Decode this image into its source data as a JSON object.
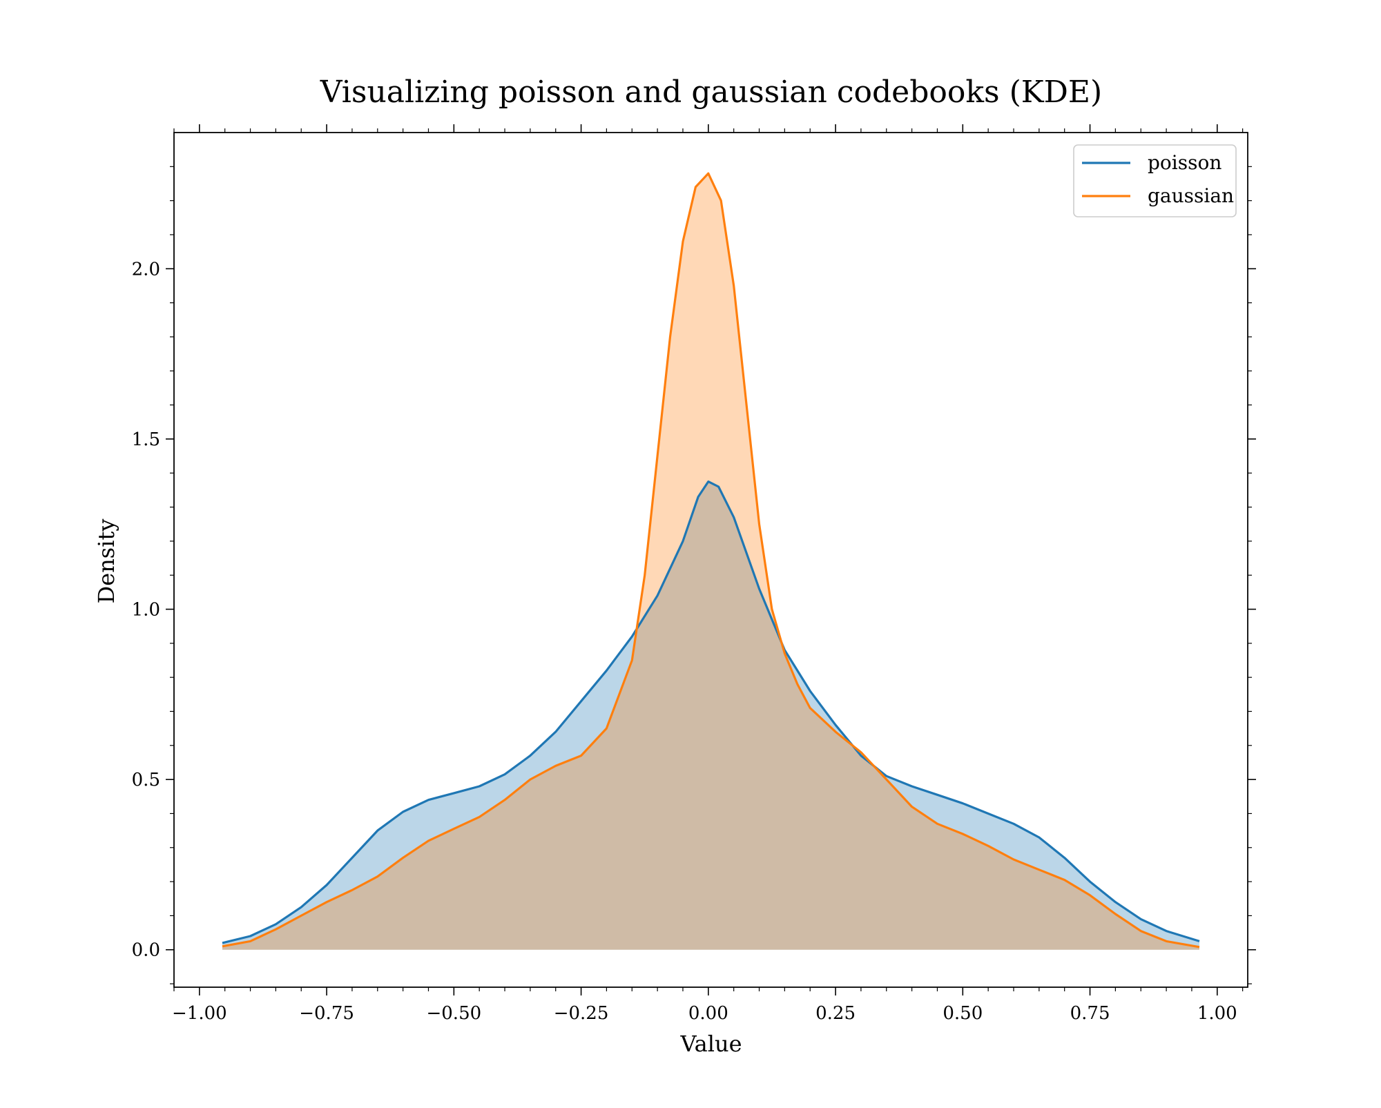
{
  "chart_data": {
    "type": "area",
    "title": "Visualizing poisson and gaussian codebooks (KDE)",
    "xlabel": "Value",
    "ylabel": "Density",
    "xlim": [
      -1.05,
      1.06
    ],
    "ylim": [
      -0.11,
      2.4
    ],
    "x_ticks": [
      -1.0,
      -0.75,
      -0.5,
      -0.25,
      0.0,
      0.25,
      0.5,
      0.75,
      1.0
    ],
    "x_tick_labels": [
      "−1.00",
      "−0.75",
      "−0.50",
      "−0.25",
      "0.00",
      "0.25",
      "0.50",
      "0.75",
      "1.00"
    ],
    "y_ticks": [
      0.0,
      0.5,
      1.0,
      1.5,
      2.0
    ],
    "y_tick_labels": [
      "0.0",
      "0.5",
      "1.0",
      "1.5",
      "2.0"
    ],
    "grid": false,
    "legend": {
      "position": "top-right"
    },
    "series": [
      {
        "name": "poisson",
        "color": "#1f77b4",
        "fill_opacity": 0.3,
        "points": [
          [
            -0.955,
            0.02
          ],
          [
            -0.9,
            0.04
          ],
          [
            -0.85,
            0.075
          ],
          [
            -0.8,
            0.125
          ],
          [
            -0.75,
            0.19
          ],
          [
            -0.7,
            0.27
          ],
          [
            -0.65,
            0.35
          ],
          [
            -0.6,
            0.405
          ],
          [
            -0.55,
            0.44
          ],
          [
            -0.5,
            0.46
          ],
          [
            -0.45,
            0.48
          ],
          [
            -0.4,
            0.515
          ],
          [
            -0.35,
            0.57
          ],
          [
            -0.3,
            0.64
          ],
          [
            -0.25,
            0.73
          ],
          [
            -0.2,
            0.82
          ],
          [
            -0.15,
            0.92
          ],
          [
            -0.1,
            1.04
          ],
          [
            -0.05,
            1.2
          ],
          [
            -0.02,
            1.33
          ],
          [
            0.0,
            1.375
          ],
          [
            0.02,
            1.36
          ],
          [
            0.05,
            1.27
          ],
          [
            0.1,
            1.06
          ],
          [
            0.15,
            0.88
          ],
          [
            0.2,
            0.76
          ],
          [
            0.25,
            0.66
          ],
          [
            0.3,
            0.57
          ],
          [
            0.35,
            0.51
          ],
          [
            0.4,
            0.48
          ],
          [
            0.45,
            0.455
          ],
          [
            0.5,
            0.43
          ],
          [
            0.55,
            0.4
          ],
          [
            0.6,
            0.37
          ],
          [
            0.65,
            0.33
          ],
          [
            0.7,
            0.27
          ],
          [
            0.75,
            0.2
          ],
          [
            0.8,
            0.14
          ],
          [
            0.85,
            0.09
          ],
          [
            0.9,
            0.055
          ],
          [
            0.965,
            0.025
          ]
        ]
      },
      {
        "name": "gaussian",
        "color": "#ff7f0e",
        "fill_opacity": 0.3,
        "points": [
          [
            -0.955,
            0.01
          ],
          [
            -0.9,
            0.025
          ],
          [
            -0.85,
            0.06
          ],
          [
            -0.8,
            0.1
          ],
          [
            -0.75,
            0.14
          ],
          [
            -0.7,
            0.175
          ],
          [
            -0.65,
            0.215
          ],
          [
            -0.6,
            0.27
          ],
          [
            -0.55,
            0.32
          ],
          [
            -0.5,
            0.355
          ],
          [
            -0.45,
            0.39
          ],
          [
            -0.4,
            0.44
          ],
          [
            -0.35,
            0.5
          ],
          [
            -0.3,
            0.54
          ],
          [
            -0.25,
            0.57
          ],
          [
            -0.2,
            0.65
          ],
          [
            -0.15,
            0.85
          ],
          [
            -0.125,
            1.1
          ],
          [
            -0.1,
            1.45
          ],
          [
            -0.075,
            1.8
          ],
          [
            -0.05,
            2.08
          ],
          [
            -0.025,
            2.24
          ],
          [
            0.0,
            2.28
          ],
          [
            0.025,
            2.2
          ],
          [
            0.05,
            1.95
          ],
          [
            0.075,
            1.6
          ],
          [
            0.1,
            1.25
          ],
          [
            0.125,
            1.0
          ],
          [
            0.15,
            0.87
          ],
          [
            0.175,
            0.78
          ],
          [
            0.2,
            0.71
          ],
          [
            0.25,
            0.64
          ],
          [
            0.3,
            0.58
          ],
          [
            0.35,
            0.5
          ],
          [
            0.4,
            0.42
          ],
          [
            0.45,
            0.37
          ],
          [
            0.5,
            0.34
          ],
          [
            0.55,
            0.305
          ],
          [
            0.6,
            0.265
          ],
          [
            0.65,
            0.235
          ],
          [
            0.7,
            0.205
          ],
          [
            0.75,
            0.16
          ],
          [
            0.8,
            0.105
          ],
          [
            0.85,
            0.055
          ],
          [
            0.9,
            0.025
          ],
          [
            0.965,
            0.008
          ]
        ]
      }
    ]
  }
}
